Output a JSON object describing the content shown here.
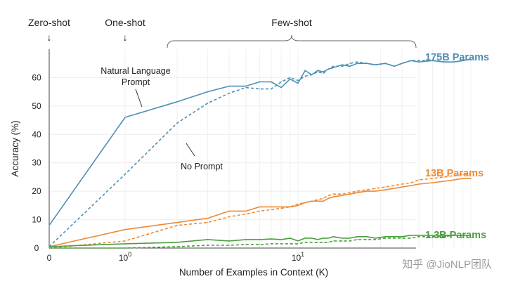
{
  "chart_data": {
    "type": "line",
    "title": "",
    "xlabel": "Number of Examples in Context  (K)",
    "ylabel": "Accuracy (%)",
    "xscale": "symlog",
    "xlim": [
      0,
      100
    ],
    "ylim": [
      0,
      70
    ],
    "yticks": [
      0,
      10,
      20,
      30,
      40,
      50,
      60
    ],
    "xticks": [
      {
        "value": 0,
        "label": "0",
        "exp": ""
      },
      {
        "value": 1,
        "label": "10",
        "exp": "0"
      },
      {
        "value": 10,
        "label": "10",
        "exp": "1"
      }
    ],
    "grid": true,
    "regions": [
      {
        "label": "Zero-shot",
        "at": 0,
        "arrow": "↓"
      },
      {
        "label": "One-shot",
        "at": 1,
        "arrow": "↓"
      },
      {
        "label": "Few-shot",
        "from": 1.5,
        "to": 100,
        "brace": true
      }
    ],
    "annotations": [
      {
        "text": "Natural Language",
        "line2": "Prompt",
        "target": [
          1.3,
          48
        ],
        "anchor": [
          1.35,
          58
        ]
      },
      {
        "text": "No Prompt",
        "target": [
          2,
          36
        ],
        "anchor": [
          2.5,
          30
        ]
      }
    ],
    "series": [
      {
        "name": "175B Params",
        "label": "175B Params",
        "color": "#4d8fb5",
        "x": [
          0,
          1,
          2,
          3,
          4,
          5,
          6,
          7,
          8,
          9,
          10,
          11,
          12,
          13,
          14,
          15,
          16,
          18,
          20,
          22,
          25,
          28,
          32,
          36,
          40,
          45,
          50,
          60,
          70,
          80,
          90,
          100
        ],
        "prompt": [
          8,
          46,
          51.5,
          55,
          57,
          57,
          58.5,
          58.5,
          56.5,
          59.5,
          58,
          62.5,
          61,
          62.5,
          62,
          63,
          63.5,
          64.5,
          64,
          65,
          65,
          64.5,
          65,
          64,
          65,
          66,
          65.5,
          66,
          65.5,
          65.5,
          66,
          66.5
        ],
        "no_prompt": [
          0.5,
          26,
          44,
          51,
          54.5,
          56.5,
          56,
          56,
          58.5,
          60,
          59,
          60.5,
          61,
          62,
          61.5,
          63,
          64,
          64,
          65,
          65.5,
          65,
          64.5,
          65,
          64,
          65,
          66,
          66,
          66,
          65.5,
          65.5,
          66,
          66.5
        ]
      },
      {
        "name": "13B Params",
        "label": "13B Params",
        "color": "#ee8a33",
        "x": [
          0,
          1,
          2,
          3,
          4,
          5,
          6,
          7,
          8,
          9,
          10,
          11,
          12,
          13,
          14,
          15,
          16,
          18,
          20,
          22,
          25,
          28,
          32,
          36,
          40,
          45,
          50,
          60,
          70,
          80,
          90,
          100
        ],
        "prompt": [
          0.5,
          6.5,
          9,
          10.5,
          13,
          13,
          14.5,
          14.5,
          14.5,
          14.5,
          15,
          16,
          16.5,
          16.5,
          16.5,
          17.5,
          18,
          18.5,
          19,
          19.5,
          20,
          20,
          20.5,
          21,
          21.5,
          22,
          22.5,
          23,
          23.5,
          24,
          24.5,
          24.5
        ],
        "no_prompt": [
          0,
          2.5,
          8,
          9,
          11,
          12,
          13,
          13.5,
          14,
          14.5,
          15.5,
          16,
          16.5,
          17,
          17.5,
          18.5,
          19,
          19,
          19.5,
          20,
          20.5,
          21,
          21.5,
          22,
          22.5,
          23,
          24,
          24.5,
          25,
          25.5,
          26,
          26
        ]
      },
      {
        "name": "1.3B Params",
        "label": "1.3B Params",
        "color": "#4a9e3f",
        "x": [
          0,
          1,
          2,
          3,
          4,
          5,
          6,
          7,
          8,
          9,
          10,
          11,
          12,
          13,
          14,
          15,
          16,
          18,
          20,
          22,
          25,
          28,
          32,
          36,
          40,
          45,
          50,
          60,
          70,
          80,
          90,
          100
        ],
        "prompt": [
          0.5,
          1.5,
          2,
          3,
          2.5,
          3,
          3,
          3.2,
          3,
          3.5,
          2.5,
          3.5,
          3.5,
          3,
          3.5,
          3.5,
          4,
          3.5,
          3.5,
          4,
          4,
          3.5,
          4,
          4,
          4,
          4.5,
          4.5,
          4.5,
          4.5,
          4.5,
          4.5,
          4.5
        ],
        "no_prompt": [
          0,
          0,
          0.5,
          1,
          1,
          1.2,
          1.2,
          1.5,
          1.5,
          1.5,
          1.5,
          2,
          2,
          2,
          2,
          2,
          2.5,
          2.5,
          2.5,
          3,
          3,
          3,
          3.5,
          3.5,
          3.5,
          3.5,
          4,
          4,
          4,
          4.5,
          4.5,
          4.5
        ]
      }
    ]
  },
  "watermark": "知乎 @JioNLP团队"
}
